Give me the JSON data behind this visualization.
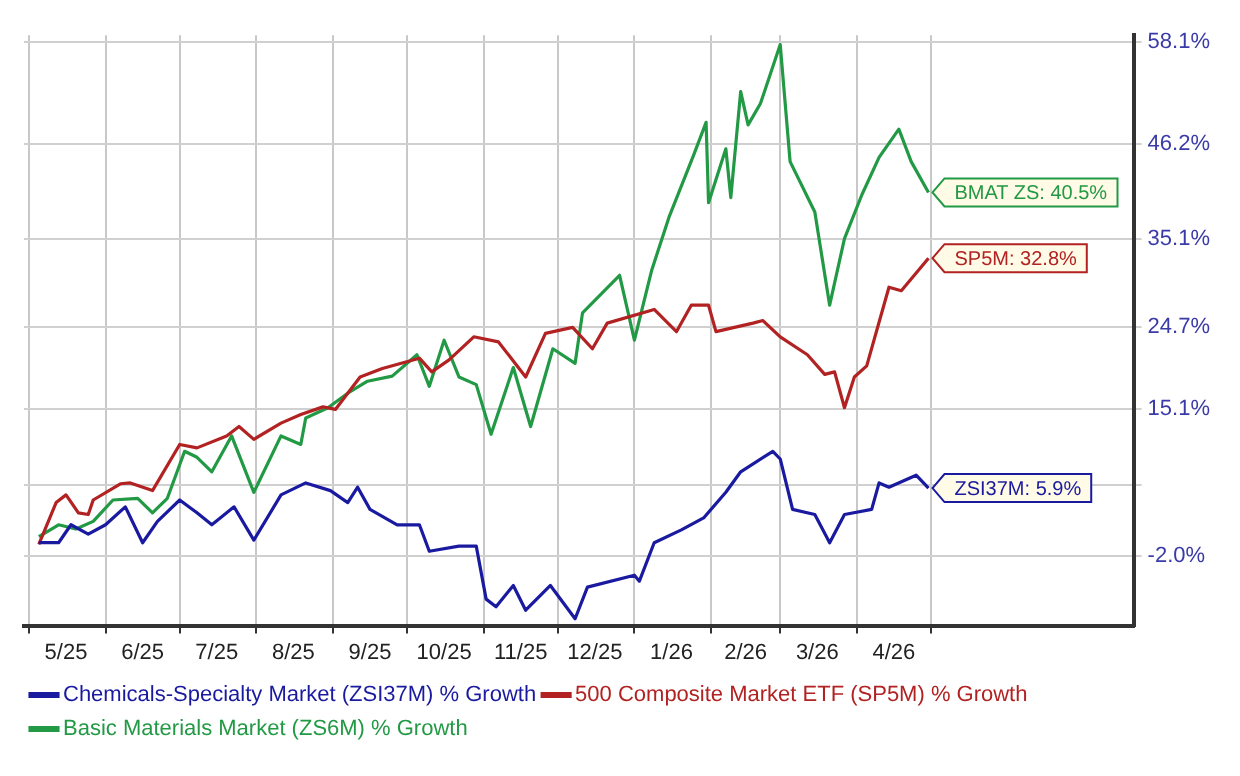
{
  "chart_data": {
    "type": "line",
    "grid": true,
    "legend": "bottom",
    "marker": "none",
    "line_style": "solid",
    "xlim": [
      "2025-04-29",
      "2026-07-22"
    ],
    "xticks": [
      {
        "value": "2025-05-01",
        "label": null
      },
      {
        "value": "2025-05-16",
        "label": "5/25"
      },
      {
        "value": "2025-06-01",
        "label": null
      },
      {
        "value": "2025-06-16",
        "label": "6/25"
      },
      {
        "value": "2025-07-01",
        "label": null
      },
      {
        "value": "2025-07-16",
        "label": "7/25"
      },
      {
        "value": "2025-08-01",
        "label": null
      },
      {
        "value": "2025-08-16",
        "label": "8/25"
      },
      {
        "value": "2025-09-01",
        "label": null
      },
      {
        "value": "2025-09-16",
        "label": "9/25"
      },
      {
        "value": "2025-10-01",
        "label": null
      },
      {
        "value": "2025-10-16",
        "label": "10/25"
      },
      {
        "value": "2025-11-01",
        "label": null
      },
      {
        "value": "2025-11-16",
        "label": "11/25"
      },
      {
        "value": "2025-12-01",
        "label": null
      },
      {
        "value": "2025-12-16",
        "label": "12/25"
      },
      {
        "value": "2026-01-01",
        "label": null
      },
      {
        "value": "2026-01-16",
        "label": "1/26"
      },
      {
        "value": "2026-02-01",
        "label": null
      },
      {
        "value": "2026-02-15",
        "label": "2/26"
      },
      {
        "value": "2026-03-01",
        "label": null
      },
      {
        "value": "2026-03-16",
        "label": "3/26"
      },
      {
        "value": "2026-04-01",
        "label": null
      },
      {
        "value": "2026-04-16",
        "label": "4/26"
      },
      {
        "value": "2026-05-01",
        "label": null
      }
    ],
    "ylim": [
      -10.2,
      58.9
    ],
    "yticks": [
      {
        "value": -2.0,
        "label": "-2.0%"
      },
      {
        "value": 6.2,
        "label": null
      },
      {
        "value": 15.1,
        "label": "15.1%"
      },
      {
        "value": 24.7,
        "label": "24.7%"
      },
      {
        "value": 35.1,
        "label": "35.1%"
      },
      {
        "value": 46.2,
        "label": "46.2%"
      },
      {
        "value": 58.1,
        "label": "58.1%"
      }
    ],
    "series": [
      {
        "name": "Chemicals-Specialty Market (ZSI37M) % Growth",
        "color": "#1a1aa0",
        "x": [
          "2025-05-05",
          "2025-05-13",
          "2025-05-18",
          "2025-05-25",
          "2025-06-01",
          "2025-06-09",
          "2025-06-16",
          "2025-06-22",
          "2025-07-01",
          "2025-07-08",
          "2025-07-14",
          "2025-07-23",
          "2025-07-31",
          "2025-08-11",
          "2025-08-21",
          "2025-08-31",
          "2025-09-07",
          "2025-09-11",
          "2025-09-16",
          "2025-09-27",
          "2025-10-06",
          "2025-10-10",
          "2025-10-22",
          "2025-10-29",
          "2025-11-02",
          "2025-11-06",
          "2025-11-13",
          "2025-11-18",
          "2025-11-28",
          "2025-12-08",
          "2025-12-13",
          "2026-01-01",
          "2026-01-03",
          "2026-01-09",
          "2026-01-20",
          "2026-01-29",
          "2026-02-07",
          "2026-02-13",
          "2026-02-26",
          "2026-03-01",
          "2026-03-06",
          "2026-03-15",
          "2026-03-21",
          "2026-03-27",
          "2026-04-07",
          "2026-04-10",
          "2026-04-14",
          "2026-04-25",
          "2026-04-30"
        ],
        "values": [
          -0.5,
          -0.5,
          1.6,
          0.5,
          1.6,
          3.7,
          -0.5,
          2.0,
          4.5,
          3.0,
          1.6,
          3.7,
          -0.2,
          5.1,
          6.5,
          5.6,
          4.2,
          6.0,
          3.4,
          1.6,
          1.6,
          -1.5,
          -0.9,
          -0.9,
          -7.1,
          -8.0,
          -5.5,
          -8.4,
          -5.5,
          -9.4,
          -5.7,
          -4.3,
          -5.0,
          -0.5,
          1.0,
          2.4,
          5.4,
          7.8,
          10.2,
          9.3,
          3.4,
          2.8,
          -0.5,
          2.8,
          3.4,
          6.5,
          6.0,
          7.4,
          5.9
        ]
      },
      {
        "name": "500 Composite Market ETF (SP5M) % Growth",
        "color": "#b22222",
        "x": [
          "2025-05-05",
          "2025-05-12",
          "2025-05-16",
          "2025-05-21",
          "2025-05-25",
          "2025-05-27",
          "2025-06-07",
          "2025-06-11",
          "2025-06-20",
          "2025-07-01",
          "2025-07-08",
          "2025-07-20",
          "2025-07-25",
          "2025-07-31",
          "2025-08-11",
          "2025-08-19",
          "2025-08-28",
          "2025-09-02",
          "2025-09-12",
          "2025-09-21",
          "2025-10-06",
          "2025-10-11",
          "2025-10-18",
          "2025-10-28",
          "2025-11-07",
          "2025-11-18",
          "2025-11-26",
          "2025-12-07",
          "2025-12-15",
          "2025-12-21",
          "2026-01-09",
          "2026-01-18",
          "2026-01-24",
          "2026-01-31",
          "2026-02-03",
          "2026-02-18",
          "2026-02-22",
          "2026-03-01",
          "2026-03-12",
          "2026-03-19",
          "2026-03-23",
          "2026-03-27",
          "2026-03-31",
          "2026-04-05",
          "2026-04-14",
          "2026-04-19",
          "2026-04-30"
        ],
        "values": [
          -0.7,
          4.2,
          5.1,
          3.0,
          2.8,
          4.5,
          6.4,
          6.5,
          5.6,
          11.0,
          10.6,
          12.0,
          13.1,
          11.6,
          13.5,
          14.5,
          15.4,
          15.1,
          18.9,
          19.9,
          21.1,
          19.5,
          20.9,
          23.6,
          23.0,
          18.9,
          24.0,
          24.7,
          22.2,
          25.2,
          26.8,
          24.2,
          27.3,
          27.3,
          24.2,
          25.2,
          25.5,
          23.6,
          21.5,
          19.2,
          19.5,
          15.3,
          18.9,
          20.2,
          29.4,
          29.0,
          32.8
        ]
      },
      {
        "name": "Basic Materials Market (ZS6M) % Growth",
        "color": "#229944",
        "x": [
          "2025-05-05",
          "2025-05-13",
          "2025-05-20",
          "2025-05-27",
          "2025-06-04",
          "2025-06-14",
          "2025-06-20",
          "2025-06-26",
          "2025-07-03",
          "2025-07-08",
          "2025-07-14",
          "2025-07-22",
          "2025-07-31",
          "2025-08-11",
          "2025-08-19",
          "2025-08-21",
          "2025-08-30",
          "2025-09-07",
          "2025-09-15",
          "2025-09-25",
          "2025-10-05",
          "2025-10-10",
          "2025-10-16",
          "2025-10-22",
          "2025-10-29",
          "2025-11-04",
          "2025-11-13",
          "2025-11-20",
          "2025-11-29",
          "2025-12-08",
          "2025-12-11",
          "2025-12-26",
          "2026-01-01",
          "2026-01-08",
          "2026-01-15",
          "2026-01-25",
          "2026-01-30",
          "2026-01-31",
          "2026-02-07",
          "2026-02-09",
          "2026-02-13",
          "2026-02-16",
          "2026-02-21",
          "2026-03-01",
          "2026-03-05",
          "2026-03-15",
          "2026-03-21",
          "2026-03-27",
          "2026-04-03",
          "2026-04-10",
          "2026-04-18",
          "2026-04-23",
          "2026-04-30"
        ],
        "values": [
          0.2,
          1.6,
          1.1,
          2.0,
          4.5,
          4.7,
          3.0,
          4.7,
          10.2,
          9.5,
          7.8,
          12.0,
          5.4,
          12.0,
          11.0,
          14.1,
          15.3,
          17.0,
          18.4,
          19.0,
          21.5,
          17.8,
          23.2,
          18.9,
          18.0,
          12.2,
          20.0,
          13.1,
          22.2,
          20.5,
          26.4,
          30.8,
          23.2,
          31.4,
          37.6,
          44.9,
          48.7,
          39.3,
          45.6,
          39.9,
          52.3,
          48.4,
          50.9,
          57.8,
          44.1,
          38.2,
          27.3,
          35.1,
          40.2,
          44.6,
          47.9,
          44.1,
          40.5
        ]
      }
    ],
    "annotations": [
      {
        "text": "ZSI37M: 5.9%",
        "x": "2026-04-30",
        "y": 5.9
      },
      {
        "text": "SP5M: 32.8%",
        "x": "2026-04-30",
        "y": 32.8
      },
      {
        "text": "BMAT ZS: 40.5%",
        "x": "2026-04-30",
        "y": 40.5
      }
    ]
  }
}
